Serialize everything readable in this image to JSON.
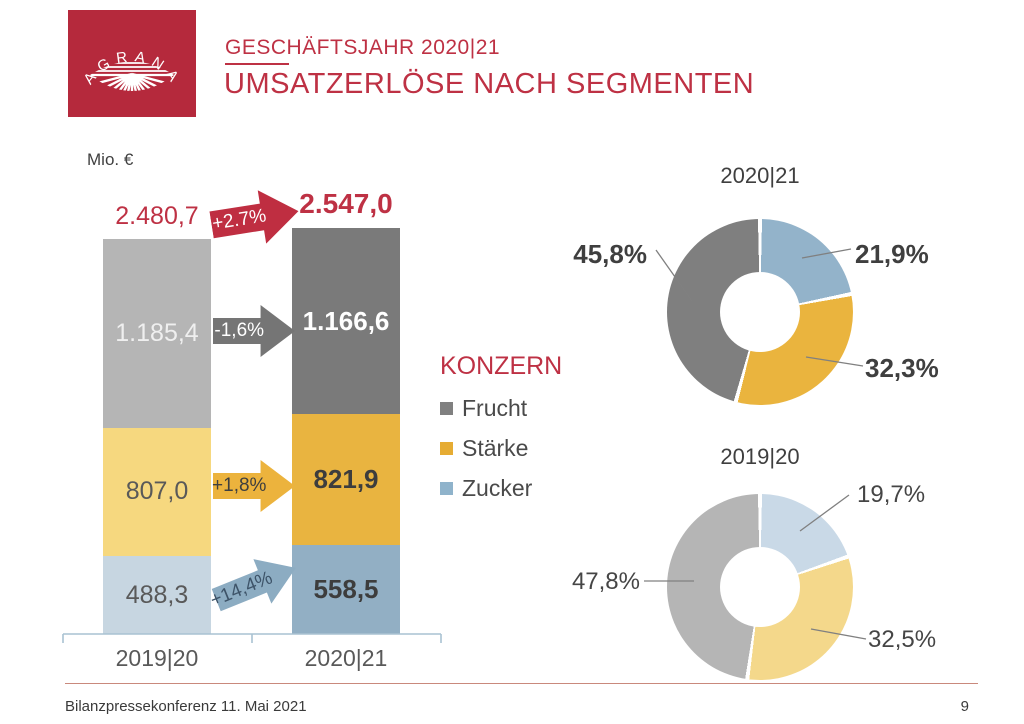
{
  "header": {
    "kicker": "GESCHÄFTSJAHR 2020|21",
    "title": "UMSATZERLÖSE NACH SEGMENTEN",
    "logo_text": "AGRANA"
  },
  "unit_label": "Mio. €",
  "colors": {
    "accent_red": "#be3144",
    "logo_red": "#b5293c",
    "axis_blue": "#a9c2d2",
    "footer_line": "#c9897c"
  },
  "legend": {
    "title": "KONZERN",
    "items": [
      {
        "label": "Frucht",
        "color": "#808080"
      },
      {
        "label": "Stärke",
        "color": "#e6ac33"
      },
      {
        "label": "Zucker",
        "color": "#8fb3cb"
      }
    ]
  },
  "chart_data": [
    {
      "type": "bar",
      "subtype": "stacked-column",
      "unit": "Mio. €",
      "categories": [
        "2019|20",
        "2020|21"
      ],
      "series": [
        {
          "name": "Frucht",
          "values": [
            1185.4,
            1166.6
          ],
          "labels": [
            "1.185,4",
            "1.166,6"
          ],
          "colors": [
            "#b5b5b5",
            "#7a7a7a"
          ]
        },
        {
          "name": "Stärke",
          "values": [
            807.0,
            821.9
          ],
          "labels": [
            "807,0",
            "821,9"
          ],
          "colors": [
            "#f6d87f",
            "#e9b440"
          ]
        },
        {
          "name": "Zucker",
          "values": [
            488.3,
            558.5
          ],
          "labels": [
            "488,3",
            "558,5"
          ],
          "colors": [
            "#c7d6e1",
            "#92afc4"
          ]
        }
      ],
      "totals": {
        "values": [
          2480.7,
          2547.0
        ],
        "labels": [
          "2.480,7",
          "2.547,0"
        ]
      },
      "change_arrows": [
        {
          "target": "Konzern gesamt",
          "label": "+2.7%",
          "color": "#bf2e41",
          "text_color": "#ffffff"
        },
        {
          "target": "Frucht",
          "label": "-1,6%",
          "color": "#757575",
          "text_color": "#ffffff"
        },
        {
          "target": "Stärke",
          "label": "+1,8%",
          "color": "#ecb33d",
          "text_color": "#3f3f3f"
        },
        {
          "target": "Zucker",
          "label": "+14,4%",
          "color": "#8cacc2",
          "text_color": "#3d5368"
        }
      ]
    },
    {
      "type": "pie",
      "subtype": "donut",
      "title": "2020|21",
      "labels": [
        "Zucker",
        "Stärke",
        "Frucht"
      ],
      "values": [
        21.9,
        32.3,
        45.8
      ],
      "display_labels": [
        "21,9%",
        "32,3%",
        "45,8%"
      ],
      "colors": [
        "#93b3ca",
        "#eab43e",
        "#7f7f7f"
      ],
      "start_angle_deg": 0,
      "direction": "clockwise"
    },
    {
      "type": "pie",
      "subtype": "donut",
      "title": "2019|20",
      "labels": [
        "Zucker",
        "Stärke",
        "Frucht"
      ],
      "values": [
        19.7,
        32.5,
        47.8
      ],
      "display_labels": [
        "19,7%",
        "32,5%",
        "47,8%"
      ],
      "colors": [
        "#c9d9e7",
        "#f4d88b",
        "#b5b5b5"
      ],
      "start_angle_deg": 0,
      "direction": "clockwise"
    }
  ],
  "footer": {
    "left": "Bilanzpressekonferenz 11. Mai 2021",
    "page": "9"
  }
}
